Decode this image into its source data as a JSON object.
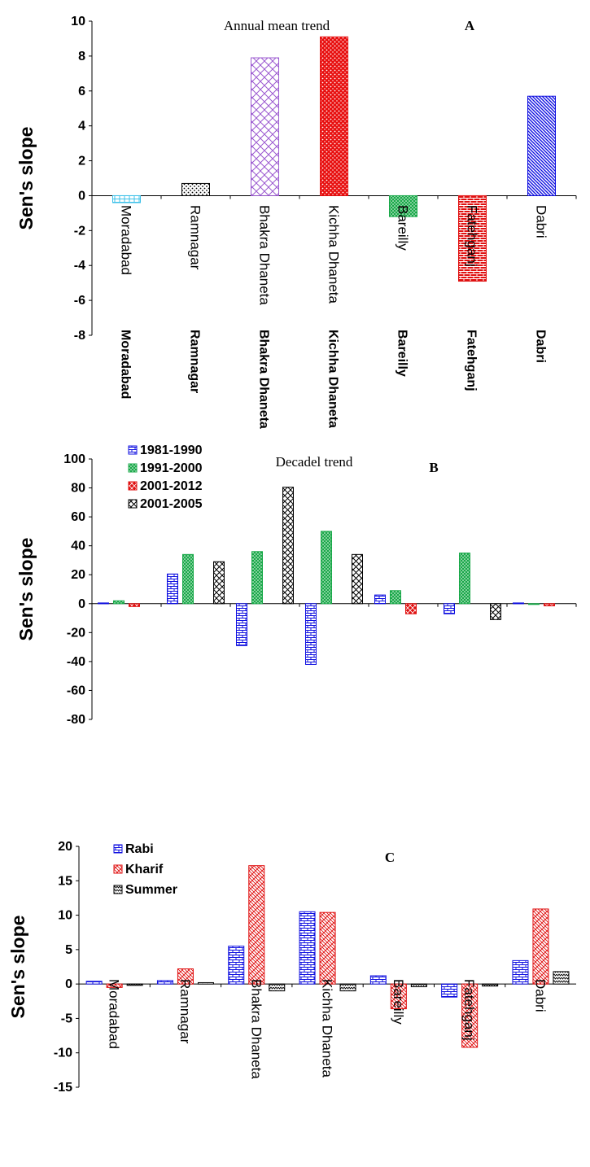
{
  "chart_data": [
    {
      "panel": "A",
      "type": "bar",
      "title": "Annual mean trend",
      "ylabel": "Sen's slope",
      "ylim": [
        -8,
        10
      ],
      "yticks": [
        10,
        8,
        6,
        4,
        2,
        0,
        -2,
        -4,
        -6,
        -8
      ],
      "categories": [
        "Moradabad",
        "Ramnagar",
        "Bhakra Dhaneta",
        "Kichha Dhaneta",
        "Bareilly",
        "Fatehganj",
        "Dabri"
      ],
      "values": [
        -0.4,
        0.7,
        7.9,
        9.1,
        -1.2,
        -4.9,
        5.7
      ],
      "bar_colors": [
        "#3cc0e8",
        "#000000",
        "#9b59d0",
        "#e81010",
        "#18a848",
        "#e01010",
        "#1010e0"
      ]
    },
    {
      "panel": "B",
      "type": "bar",
      "title": "Decadel trend",
      "ylabel": "Sen's slope",
      "ylim": [
        -80,
        100
      ],
      "yticks": [
        100,
        80,
        60,
        40,
        20,
        0,
        -20,
        -40,
        -60,
        -80
      ],
      "categories": [
        "Moradabad",
        "Ramnagar",
        "Bhakra Dhaneta",
        "Kichha Dhaneta",
        "Bareilly",
        "Fatehganj",
        "Dabri"
      ],
      "series": [
        {
          "name": "1981-1990",
          "color": "#1010e0",
          "values": [
            0.5,
            20.5,
            -29,
            -42,
            6,
            -7,
            0.5
          ]
        },
        {
          "name": "1991-2000",
          "color": "#18a848",
          "values": [
            2,
            34,
            36,
            50,
            9,
            35,
            -0.5
          ]
        },
        {
          "name": "2001-2012",
          "color": "#e01010",
          "values": [
            -2,
            0,
            0,
            0,
            -7,
            0,
            -1.5
          ]
        },
        {
          "name": "2001-2005",
          "color": "#000000",
          "values": [
            0,
            29,
            80.5,
            34,
            0,
            -11,
            0
          ]
        }
      ]
    },
    {
      "panel": "C",
      "type": "bar",
      "title": "",
      "ylabel": "Sen's slope",
      "ylim": [
        -15,
        20
      ],
      "yticks": [
        20,
        15,
        10,
        5,
        0,
        -5,
        -10,
        -15
      ],
      "categories": [
        "Moradabad",
        "Ramnagar",
        "Bhakra Dhaneta",
        "Kichha Dhaneta",
        "Bareilly",
        "Fatehganj",
        "Dabri"
      ],
      "series": [
        {
          "name": "Rabi",
          "color": "#1010e0",
          "values": [
            0.4,
            0.5,
            5.5,
            10.5,
            1.2,
            -1.9,
            3.4
          ]
        },
        {
          "name": "Kharif",
          "color": "#e01010",
          "values": [
            -0.5,
            2.2,
            17.2,
            10.4,
            -3.6,
            -9.2,
            10.9
          ]
        },
        {
          "name": "Summer",
          "color": "#000000",
          "values": [
            -0.2,
            0.2,
            -1.0,
            -1.0,
            -0.4,
            -0.3,
            1.8
          ]
        }
      ]
    }
  ]
}
